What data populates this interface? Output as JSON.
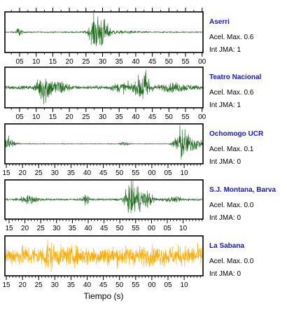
{
  "chart_data": {
    "type": "line",
    "xlabel": "Tiempo (s)",
    "accel_label": "Acel. Max.",
    "jma_label": "Int JMA:",
    "panels": [
      {
        "name": "Aserri",
        "acel_max": "0.6",
        "int_jma": "1",
        "color": "#1f6b1f",
        "tick_labels": [
          "05",
          "10",
          "15",
          "20",
          "25",
          "30",
          "35",
          "40",
          "45",
          "50",
          "55",
          "00"
        ],
        "tick_labels_top": [
          "05",
          "10",
          "15",
          "20",
          "25",
          "30",
          "35",
          "40",
          "45",
          "50",
          "55",
          "00"
        ]
      },
      {
        "name": "Teatro Nacional",
        "acel_max": "0.6",
        "int_jma": "1",
        "color": "#1f6b1f",
        "tick_labels": [
          "05",
          "10",
          "15",
          "20",
          "25",
          "30",
          "35",
          "40",
          "45",
          "50",
          "55",
          "00"
        ]
      },
      {
        "name": "Ochomogo UCR",
        "acel_max": "0.1",
        "int_jma": "0",
        "color": "#1f6b1f",
        "tick_labels": [
          "15",
          "20",
          "25",
          "30",
          "35",
          "40",
          "45",
          "50",
          "55",
          "00",
          "05",
          "10"
        ]
      },
      {
        "name": "S.J. Montana, Barva",
        "acel_max": "0.0",
        "int_jma": "0",
        "color": "#1f6b1f",
        "tick_labels": [
          "15",
          "20",
          "25",
          "30",
          "35",
          "40",
          "45",
          "50",
          "55",
          "00",
          "05",
          "10"
        ]
      },
      {
        "name": "La Sabana",
        "acel_max": "0.0",
        "int_jma": "0",
        "color": "#ffaa00",
        "tick_labels": [
          "15",
          "20",
          "25",
          "30",
          "35",
          "40",
          "45",
          "50",
          "55",
          "00",
          "05",
          "10"
        ]
      }
    ]
  }
}
